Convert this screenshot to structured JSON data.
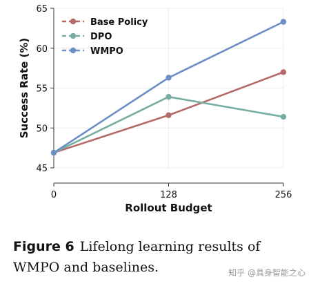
{
  "chart_data": {
    "type": "line",
    "x": [
      0,
      128,
      256
    ],
    "xticks": [
      "0",
      "128",
      "256"
    ],
    "xlabel": "Rollout Budget",
    "ylabel": "Success Rate (%)",
    "ylim": [
      45,
      65
    ],
    "yticks": [
      45,
      50,
      55,
      60,
      65
    ],
    "grid": true,
    "legend_position": "top-left",
    "series": [
      {
        "name": "Base Policy",
        "color": "#b56a6a",
        "values": [
          46.9,
          51.6,
          57.0
        ]
      },
      {
        "name": "DPO",
        "color": "#76ada2",
        "values": [
          46.9,
          53.9,
          51.4
        ]
      },
      {
        "name": "WMPO",
        "color": "#6b8ec4",
        "values": [
          46.9,
          56.3,
          63.3
        ]
      }
    ]
  },
  "caption": {
    "label": "Figure 6",
    "text": "Lifelong learning results of WMPO and baselines."
  },
  "watermark": "知乎 @具身智能之心"
}
